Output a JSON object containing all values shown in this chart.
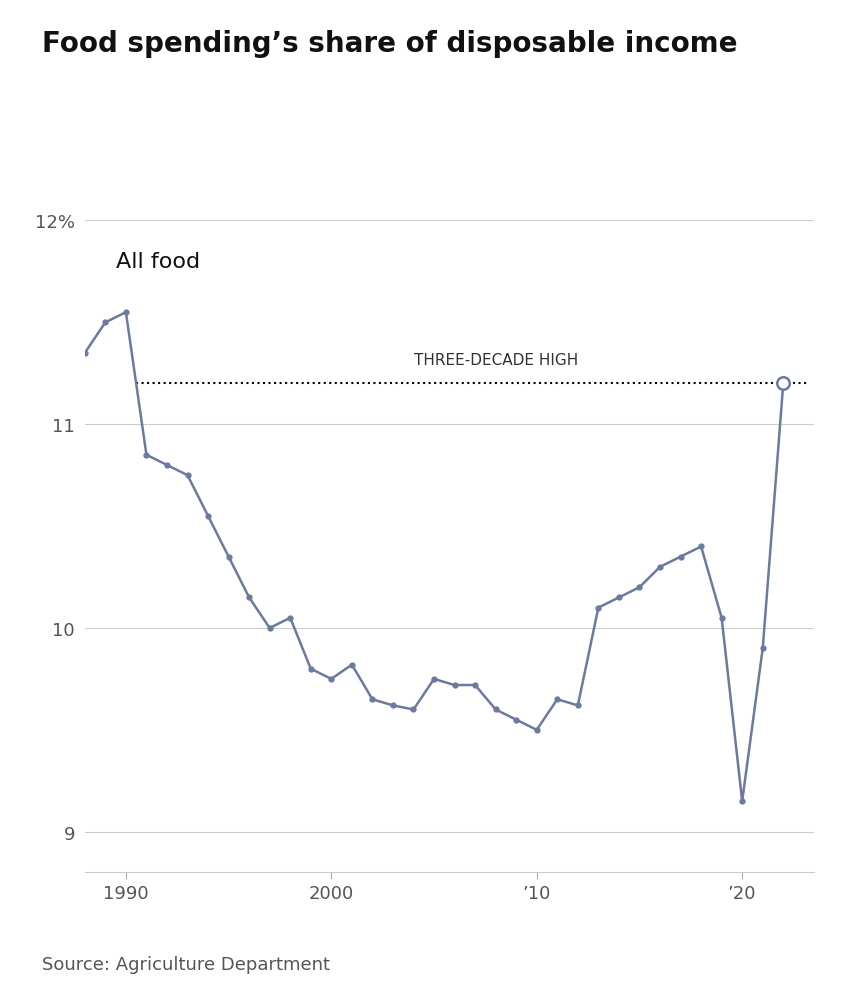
{
  "title": "Food spending’s share of disposable income",
  "subtitle": "All food",
  "source": "Source: Agriculture Department",
  "line_color": "#6b7a9e",
  "background_color": "#ffffff",
  "dotted_line_value": 11.2,
  "dotted_line_label": "THREE-DECADE HIGH",
  "years": [
    1988,
    1989,
    1990,
    1991,
    1992,
    1993,
    1994,
    1995,
    1996,
    1997,
    1998,
    1999,
    2000,
    2001,
    2002,
    2003,
    2004,
    2005,
    2006,
    2007,
    2008,
    2009,
    2010,
    2011,
    2012,
    2013,
    2014,
    2015,
    2016,
    2017,
    2018,
    2019,
    2020,
    2021,
    2022
  ],
  "values": [
    11.35,
    11.5,
    11.55,
    10.85,
    10.8,
    10.75,
    10.55,
    10.35,
    10.15,
    10.0,
    10.05,
    9.8,
    9.75,
    9.82,
    9.65,
    9.62,
    9.6,
    9.75,
    9.72,
    9.72,
    9.6,
    9.55,
    9.5,
    9.65,
    9.62,
    10.1,
    10.15,
    10.2,
    10.3,
    10.35,
    10.4,
    10.05,
    9.15,
    9.9,
    11.2
  ],
  "ylim": [
    8.8,
    12.2
  ],
  "yticks": [
    9,
    10,
    11,
    12
  ],
  "ytick_labels": [
    "9",
    "10",
    "11",
    "12%"
  ],
  "xticks": [
    1990,
    2000,
    2010,
    2020
  ],
  "xtick_labels": [
    "1990",
    "2000",
    "’10",
    "’20"
  ],
  "title_fontsize": 20,
  "subtitle_fontsize": 16,
  "source_fontsize": 13,
  "axis_fontsize": 13
}
